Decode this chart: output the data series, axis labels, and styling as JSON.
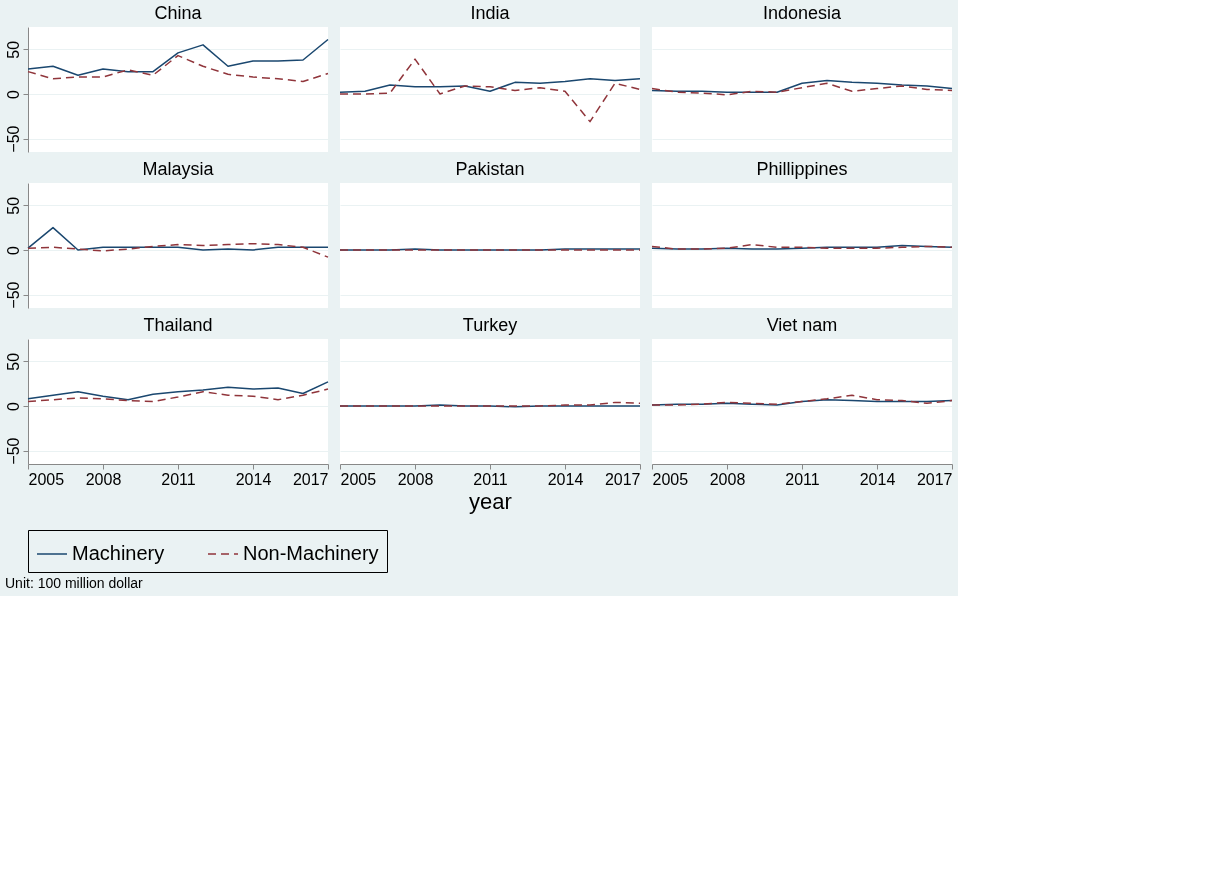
{
  "chart_data": [
    {
      "type": "line",
      "title": "China",
      "legend": "bottom",
      "x": [
        2005,
        2006,
        2007,
        2008,
        2009,
        2010,
        2011,
        2012,
        2013,
        2014,
        2015,
        2016,
        2017
      ],
      "xlim": [
        2005,
        2017
      ],
      "xticks": [
        2005,
        2008,
        2011,
        2014,
        2017
      ],
      "ylim": [
        -65,
        75
      ],
      "yticks": [
        -50,
        0,
        50
      ],
      "grid": "y",
      "tick_labels": "y",
      "series": [
        {
          "name": "Machinery",
          "color": "#1a476f",
          "line_style": "solid",
          "values": [
            28,
            31,
            21,
            28,
            25,
            25,
            46,
            55,
            31,
            37,
            37,
            38,
            61
          ]
        },
        {
          "name": "Non-Machinery",
          "color": "#90353b",
          "line_style": "dashed",
          "values": [
            25,
            17,
            19,
            19,
            27,
            21,
            43,
            31,
            22,
            19,
            17,
            14,
            23
          ]
        }
      ]
    },
    {
      "type": "line",
      "title": "India",
      "x": [
        2005,
        2006,
        2007,
        2008,
        2009,
        2010,
        2011,
        2012,
        2013,
        2014,
        2015,
        2016,
        2017
      ],
      "xlim": [
        2005,
        2017
      ],
      "xticks": [
        2005,
        2008,
        2011,
        2014,
        2017
      ],
      "ylim": [
        -65,
        75
      ],
      "yticks": [
        -50,
        0,
        50
      ],
      "grid": "y",
      "tick_labels": false,
      "series": [
        {
          "name": "Machinery",
          "color": "#1a476f",
          "line_style": "solid",
          "values": [
            2,
            3,
            10,
            8,
            8,
            9,
            3,
            13,
            12,
            14,
            17,
            15,
            17
          ]
        },
        {
          "name": "Non-Machinery",
          "color": "#90353b",
          "line_style": "dashed",
          "values": [
            0,
            0,
            1,
            39,
            0,
            9,
            8,
            4,
            7,
            3,
            -31,
            12,
            5
          ]
        }
      ]
    },
    {
      "type": "line",
      "title": "Indonesia",
      "x": [
        2005,
        2006,
        2007,
        2008,
        2009,
        2010,
        2011,
        2012,
        2013,
        2014,
        2015,
        2016,
        2017
      ],
      "xlim": [
        2005,
        2017
      ],
      "xticks": [
        2005,
        2008,
        2011,
        2014,
        2017
      ],
      "ylim": [
        -65,
        75
      ],
      "yticks": [
        -50,
        0,
        50
      ],
      "grid": "y",
      "tick_labels": false,
      "series": [
        {
          "name": "Machinery",
          "color": "#1a476f",
          "line_style": "solid",
          "values": [
            4,
            3,
            3,
            2,
            2,
            2,
            12,
            15,
            13,
            12,
            10,
            9,
            6
          ]
        },
        {
          "name": "Non-Machinery",
          "color": "#90353b",
          "line_style": "dashed",
          "values": [
            6,
            2,
            1,
            -1,
            3,
            2,
            7,
            12,
            3,
            6,
            9,
            5,
            4
          ]
        }
      ]
    },
    {
      "type": "line",
      "title": "Malaysia",
      "x": [
        2005,
        2006,
        2007,
        2008,
        2009,
        2010,
        2011,
        2012,
        2013,
        2014,
        2015,
        2016,
        2017
      ],
      "xlim": [
        2005,
        2017
      ],
      "xticks": [
        2005,
        2008,
        2011,
        2014,
        2017
      ],
      "ylim": [
        -65,
        75
      ],
      "yticks": [
        -50,
        0,
        50
      ],
      "grid": "y",
      "tick_labels": "y",
      "series": [
        {
          "name": "Machinery",
          "color": "#1a476f",
          "line_style": "solid",
          "values": [
            2,
            25,
            0,
            3,
            3,
            3,
            3,
            0,
            1,
            0,
            3,
            3,
            3
          ]
        },
        {
          "name": "Non-Machinery",
          "color": "#90353b",
          "line_style": "dashed",
          "values": [
            2,
            3,
            1,
            -1,
            1,
            4,
            6,
            5,
            6,
            7,
            6,
            3,
            -8
          ]
        }
      ]
    },
    {
      "type": "line",
      "title": "Pakistan",
      "x": [
        2005,
        2006,
        2007,
        2008,
        2009,
        2010,
        2011,
        2012,
        2013,
        2014,
        2015,
        2016,
        2017
      ],
      "xlim": [
        2005,
        2017
      ],
      "xticks": [
        2005,
        2008,
        2011,
        2014,
        2017
      ],
      "ylim": [
        -65,
        75
      ],
      "yticks": [
        -50,
        0,
        50
      ],
      "grid": "y",
      "tick_labels": false,
      "series": [
        {
          "name": "Machinery",
          "color": "#1a476f",
          "line_style": "solid",
          "values": [
            0,
            0,
            0,
            1,
            0,
            0,
            0,
            0,
            0,
            1,
            1,
            1,
            1
          ]
        },
        {
          "name": "Non-Machinery",
          "color": "#90353b",
          "line_style": "dashed",
          "values": [
            0,
            0,
            0,
            0,
            0,
            0,
            0,
            0,
            0,
            0,
            0,
            0,
            0
          ]
        }
      ]
    },
    {
      "type": "line",
      "title": "Phillippines",
      "x": [
        2005,
        2006,
        2007,
        2008,
        2009,
        2010,
        2011,
        2012,
        2013,
        2014,
        2015,
        2016,
        2017
      ],
      "xlim": [
        2005,
        2017
      ],
      "xticks": [
        2005,
        2008,
        2011,
        2014,
        2017
      ],
      "ylim": [
        -65,
        75
      ],
      "yticks": [
        -50,
        0,
        50
      ],
      "grid": "y",
      "tick_labels": false,
      "series": [
        {
          "name": "Machinery",
          "color": "#1a476f",
          "line_style": "solid",
          "values": [
            2,
            1,
            1,
            2,
            1,
            1,
            2,
            3,
            3,
            3,
            5,
            4,
            3
          ]
        },
        {
          "name": "Non-Machinery",
          "color": "#90353b",
          "line_style": "dashed",
          "values": [
            4,
            1,
            1,
            2,
            6,
            3,
            3,
            2,
            2,
            2,
            3,
            4,
            3
          ]
        }
      ]
    },
    {
      "type": "line",
      "title": "Thailand",
      "x": [
        2005,
        2006,
        2007,
        2008,
        2009,
        2010,
        2011,
        2012,
        2013,
        2014,
        2015,
        2016,
        2017
      ],
      "xlim": [
        2005,
        2017
      ],
      "xticks": [
        2005,
        2008,
        2011,
        2014,
        2017
      ],
      "ylim": [
        -65,
        75
      ],
      "yticks": [
        -50,
        0,
        50
      ],
      "grid": "y",
      "annotations": [
        "Unit: 100 million dollar"
      ],
      "series": [
        {
          "name": "Machinery",
          "color": "#1a476f",
          "line_style": "solid",
          "values": [
            8,
            12,
            16,
            11,
            7,
            13,
            16,
            18,
            21,
            19,
            20,
            14,
            27
          ]
        },
        {
          "name": "Non-Machinery",
          "color": "#90353b",
          "line_style": "dashed",
          "values": [
            5,
            7,
            9,
            8,
            6,
            5,
            10,
            16,
            12,
            11,
            7,
            12,
            19
          ]
        }
      ]
    },
    {
      "type": "line",
      "title": "Turkey",
      "xlabel": "year",
      "x": [
        2005,
        2006,
        2007,
        2008,
        2009,
        2010,
        2011,
        2012,
        2013,
        2014,
        2015,
        2016,
        2017
      ],
      "xlim": [
        2005,
        2017
      ],
      "xticks": [
        2005,
        2008,
        2011,
        2014,
        2017
      ],
      "ylim": [
        -65,
        75
      ],
      "yticks": [
        -50,
        0,
        50
      ],
      "grid": "y",
      "tick_labels": "x",
      "series": [
        {
          "name": "Machinery",
          "color": "#1a476f",
          "line_style": "solid",
          "values": [
            0,
            0,
            0,
            0,
            1,
            0,
            0,
            -1,
            0,
            0,
            0,
            0,
            0
          ]
        },
        {
          "name": "Non-Machinery",
          "color": "#90353b",
          "line_style": "dashed",
          "values": [
            0,
            0,
            0,
            0,
            0,
            0,
            0,
            0,
            0,
            1,
            1,
            4,
            3
          ]
        }
      ]
    },
    {
      "type": "line",
      "title": "Viet nam",
      "x": [
        2005,
        2006,
        2007,
        2008,
        2009,
        2010,
        2011,
        2012,
        2013,
        2014,
        2015,
        2016,
        2017
      ],
      "xlim": [
        2005,
        2017
      ],
      "xticks": [
        2005,
        2008,
        2011,
        2014,
        2017
      ],
      "ylim": [
        -65,
        75
      ],
      "yticks": [
        -50,
        0,
        50
      ],
      "grid": "y",
      "tick_labels": "x",
      "series": [
        {
          "name": "Machinery",
          "color": "#1a476f",
          "line_style": "solid",
          "values": [
            1,
            2,
            2,
            3,
            2,
            1,
            5,
            7,
            6,
            5,
            5,
            5,
            6
          ]
        },
        {
          "name": "Non-Machinery",
          "color": "#90353b",
          "line_style": "dashed",
          "values": [
            1,
            1,
            2,
            4,
            3,
            2,
            5,
            8,
            12,
            7,
            6,
            3,
            6
          ]
        }
      ]
    }
  ]
}
